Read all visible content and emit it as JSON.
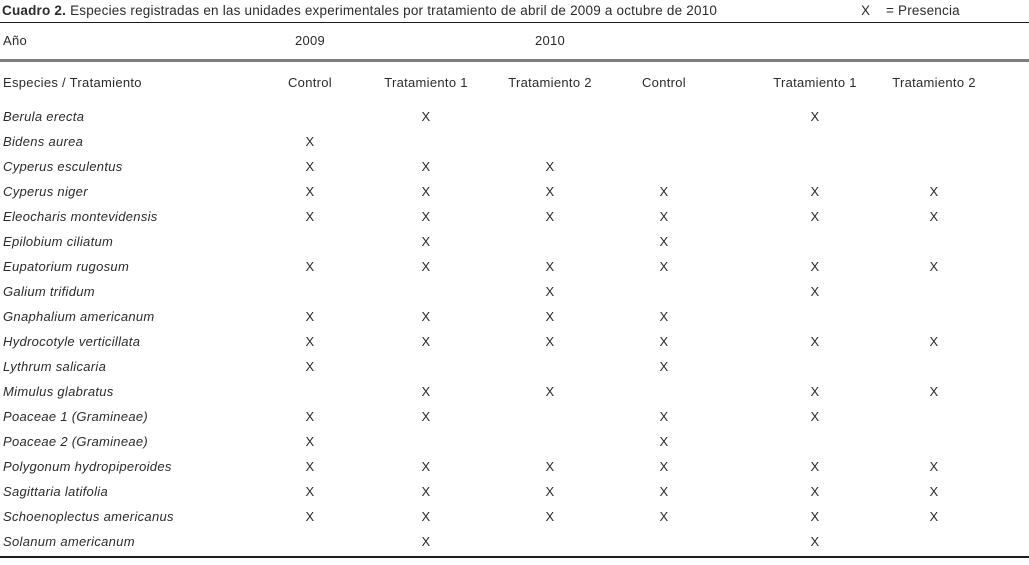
{
  "table": {
    "title_bold": "Cuadro 2.",
    "title_rest": "Especies registradas en las unidades experimentales por tratamiento de abril de 2009 a octubre de 2010",
    "legend_mark": "X",
    "legend_text": "= Presencia",
    "year_label": "Año",
    "years": [
      "2009",
      "2010"
    ],
    "species_header": "Especies / Tratamiento",
    "treatment_headers": [
      "Control",
      "Tratamiento 1",
      "Tratamiento 2",
      "Control",
      "Tratamiento 1",
      "Tratamiento 2"
    ],
    "presence_mark": "X",
    "rows": [
      {
        "species": "Berula erecta",
        "presence": [
          0,
          1,
          0,
          0,
          1,
          0
        ]
      },
      {
        "species": "Bidens aurea",
        "presence": [
          1,
          0,
          0,
          0,
          0,
          0
        ]
      },
      {
        "species": "Cyperus esculentus",
        "presence": [
          1,
          1,
          1,
          0,
          0,
          0
        ]
      },
      {
        "species": "Cyperus niger",
        "presence": [
          1,
          1,
          1,
          1,
          1,
          1
        ]
      },
      {
        "species": "Eleocharis montevidensis",
        "presence": [
          1,
          1,
          1,
          1,
          1,
          1
        ]
      },
      {
        "species": "Epilobium ciliatum",
        "presence": [
          0,
          1,
          0,
          1,
          0,
          0
        ]
      },
      {
        "species": "Eupatorium rugosum",
        "presence": [
          1,
          1,
          1,
          1,
          1,
          1
        ]
      },
      {
        "species": "Galium trifidum",
        "presence": [
          0,
          0,
          1,
          0,
          1,
          0
        ]
      },
      {
        "species": "Gnaphalium americanum",
        "presence": [
          1,
          1,
          1,
          1,
          0,
          0
        ]
      },
      {
        "species": "Hydrocotyle verticillata",
        "presence": [
          1,
          1,
          1,
          1,
          1,
          1
        ]
      },
      {
        "species": "Lythrum salicaria",
        "presence": [
          1,
          0,
          0,
          1,
          0,
          0
        ]
      },
      {
        "species": "Mimulus glabratus",
        "presence": [
          0,
          1,
          1,
          0,
          1,
          1
        ]
      },
      {
        "species": "Poaceae 1 (Gramineae)",
        "presence": [
          1,
          1,
          0,
          1,
          1,
          0
        ]
      },
      {
        "species": "Poaceae 2 (Gramineae)",
        "presence": [
          1,
          0,
          0,
          1,
          0,
          0
        ]
      },
      {
        "species": "Polygonum hydropiperoides",
        "presence": [
          1,
          1,
          1,
          1,
          1,
          1
        ]
      },
      {
        "species": "Sagittaria latifolia",
        "presence": [
          1,
          1,
          1,
          1,
          1,
          1
        ]
      },
      {
        "species": "Schoenoplectus americanus",
        "presence": [
          1,
          1,
          1,
          1,
          1,
          1
        ]
      },
      {
        "species": "Solanum americanum",
        "presence": [
          0,
          1,
          0,
          0,
          1,
          0
        ]
      }
    ],
    "rules": {
      "thin_rule_color": "#1c1c1c",
      "mid_rule_color": "#7d7d7d",
      "bottom_rule_color": "#1c1c1c"
    }
  }
}
